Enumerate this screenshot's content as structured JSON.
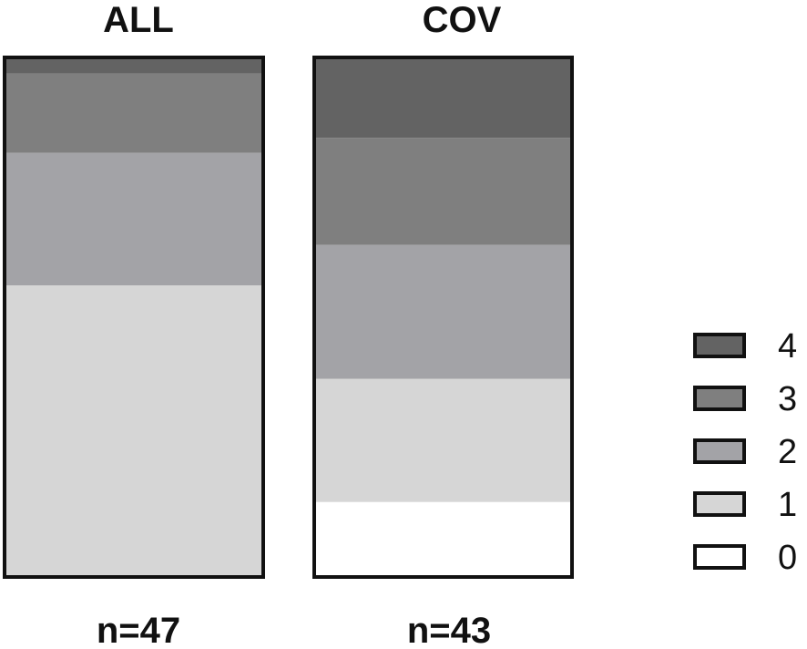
{
  "chart_data": {
    "type": "bar",
    "stacked": true,
    "normalized": true,
    "categories": [
      "ALL",
      "COV"
    ],
    "counts": [
      "n=47",
      "n=43"
    ],
    "series": [
      {
        "name": "0",
        "color": "#ffffff",
        "values": [
          0,
          14
        ]
      },
      {
        "name": "1",
        "color": "#d6d6d6",
        "values": [
          55,
          23
        ]
      },
      {
        "name": "2",
        "color": "#a3a3a7",
        "values": [
          25,
          25
        ]
      },
      {
        "name": "3",
        "color": "#7f7f7f",
        "values": [
          15,
          20
        ]
      },
      {
        "name": "4",
        "color": "#636363",
        "values": [
          3,
          15
        ]
      }
    ],
    "ylim": [
      0,
      100
    ],
    "legend_position": "right",
    "grid": false
  }
}
